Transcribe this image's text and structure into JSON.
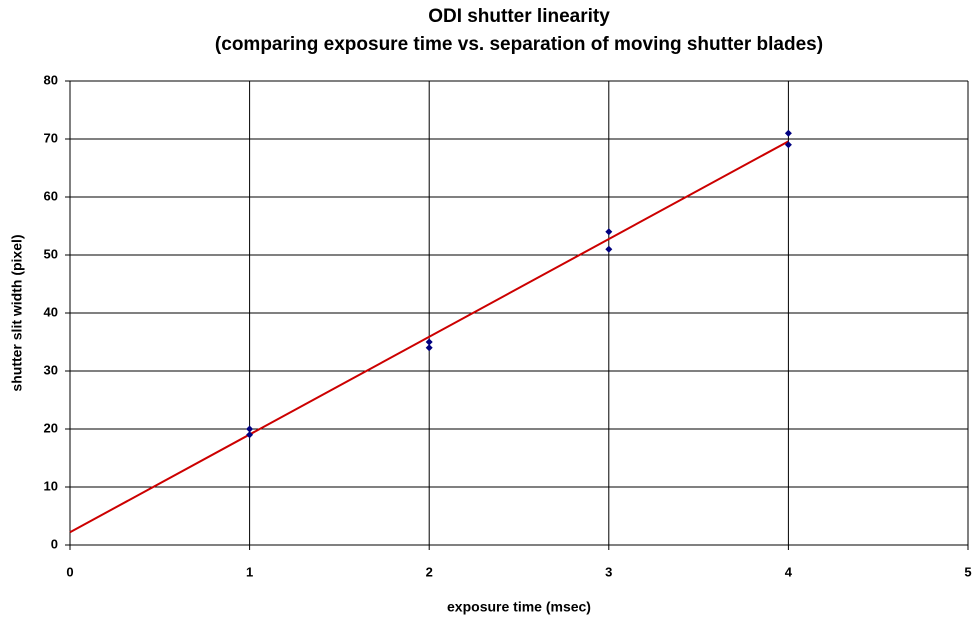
{
  "chart_data": {
    "type": "scatter",
    "title": "ODI shutter linearity",
    "subtitle": "(comparing exposure time vs. separation of moving shutter blades)",
    "x_label": "exposure time (msec)",
    "y_label": "shutter slit width (pixel)",
    "series": [
      {
        "x": [
          1,
          1,
          2,
          2,
          3,
          3,
          4,
          4
        ],
        "values": [
          20,
          19,
          35,
          34,
          54,
          51,
          71,
          69
        ],
        "color": "#000080"
      }
    ],
    "trendline": {
      "x": [
        0,
        4
      ],
      "values": [
        2.2,
        69.6
      ],
      "color": "#cc0000"
    },
    "xlim": [
      0,
      5
    ],
    "xticks": [
      0,
      1,
      2,
      3,
      4,
      5
    ],
    "ylim": [
      0,
      80
    ],
    "yticks": [
      0,
      10,
      20,
      30,
      40,
      50,
      60,
      70,
      80
    ],
    "grid": true
  }
}
